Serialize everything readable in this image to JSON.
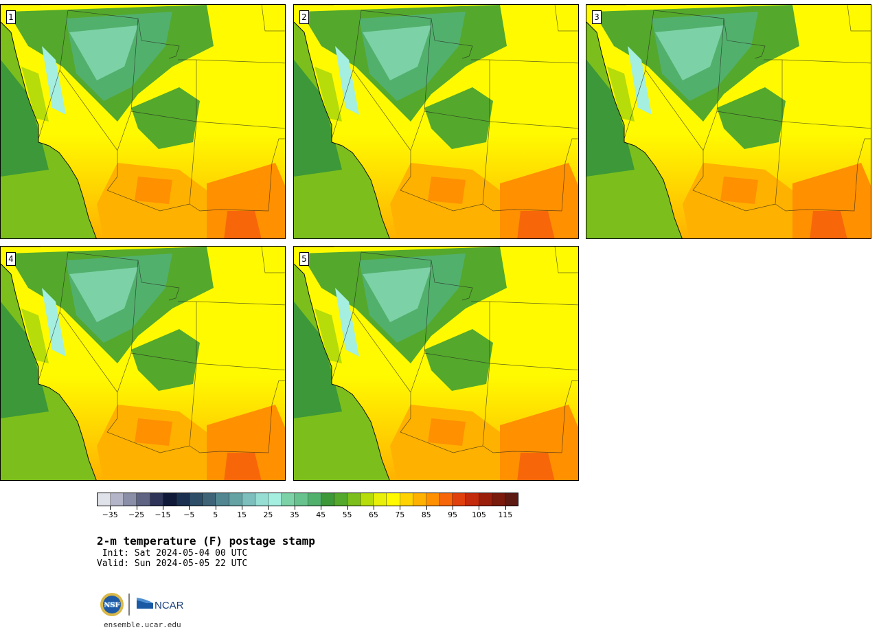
{
  "panels": [
    {
      "label": "1"
    },
    {
      "label": "2"
    },
    {
      "label": "3"
    },
    {
      "label": "4"
    },
    {
      "label": "5"
    }
  ],
  "colorbar": {
    "colors": [
      "#e0e2ea",
      "#b4b5c8",
      "#8a8ea6",
      "#5e6482",
      "#2e3558",
      "#101a38",
      "#1b2f4e",
      "#2e4d66",
      "#3f6478",
      "#528690",
      "#65a2a3",
      "#7cbfbc",
      "#96ddd4",
      "#a4efe0",
      "#7cd2a6",
      "#68c28e",
      "#52b06d",
      "#3c9838",
      "#54a82c",
      "#7cbf1c",
      "#b6dc0a",
      "#e8f00a",
      "#fffa00",
      "#ffd200",
      "#ffb100",
      "#ff9000",
      "#f7670a",
      "#e0400c",
      "#c42a0c",
      "#9a1e0c",
      "#7a1a0c",
      "#5c1a12"
    ],
    "ticks": [
      "−35",
      "−25",
      "−15",
      "−5",
      "5",
      "15",
      "25",
      "35",
      "45",
      "55",
      "65",
      "75",
      "85",
      "95",
      "105",
      "115"
    ],
    "min": -40,
    "max": 120
  },
  "info": {
    "title": "2-m temperature (F) postage stamp",
    "init": " Init: Sat 2024-05-04 00 UTC",
    "valid": "Valid: Sun 2024-05-05 22 UTC"
  },
  "footer": {
    "nsf_logo_text": "NSF",
    "ncar_logo_text": "NCAR",
    "url": "ensemble.ucar.edu"
  }
}
